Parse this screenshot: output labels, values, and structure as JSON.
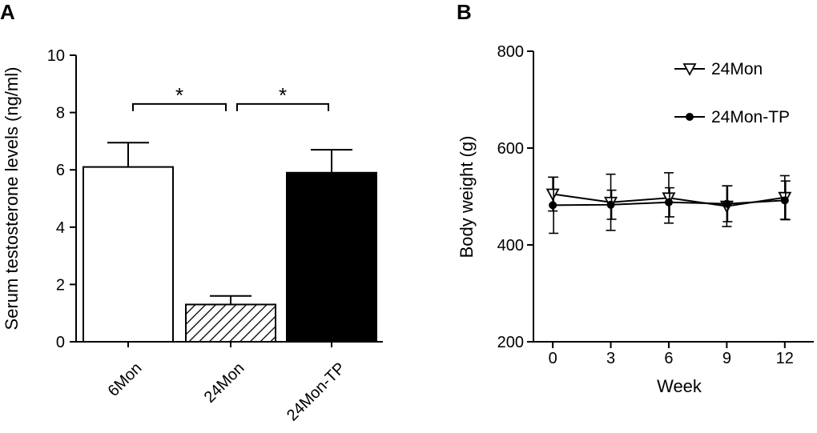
{
  "chart_data": [
    {
      "panel_label": "A",
      "type": "bar",
      "title": "",
      "xlabel": "",
      "ylabel": "Serum testosterone levels (ng/ml)",
      "ylim": [
        0,
        10
      ],
      "yticks": [
        "0",
        "2",
        "4",
        "6",
        "8",
        "10"
      ],
      "categories": [
        "6Mon",
        "24Mon",
        "24Mon-TP"
      ],
      "values": [
        6.1,
        1.3,
        5.9
      ],
      "errors": [
        0.85,
        0.3,
        0.8
      ],
      "fills": [
        "white",
        "hatched",
        "black"
      ],
      "significance": [
        {
          "from": 0,
          "to": 1,
          "y": 8.3,
          "label": "*"
        },
        {
          "from": 1,
          "to": 2,
          "y": 8.3,
          "label": "*"
        }
      ]
    },
    {
      "panel_label": "B",
      "type": "line",
      "title": "",
      "xlabel": "Week",
      "ylabel": "Body weight (g)",
      "ylim": [
        200,
        800
      ],
      "xlim": [
        -1,
        13.5
      ],
      "yticks": [
        "200",
        "400",
        "600",
        "800"
      ],
      "x": [
        0,
        3,
        6,
        9,
        12
      ],
      "xticks": [
        "0",
        "3",
        "6",
        "9",
        "12"
      ],
      "legend_position": "top-right",
      "series": [
        {
          "name": "24Mon",
          "marker": "triangle-down-open",
          "values": [
            505,
            488,
            497,
            480,
            498
          ],
          "errors": [
            35,
            58,
            52,
            42,
            45
          ]
        },
        {
          "name": "24Mon-TP",
          "marker": "circle-filled",
          "values": [
            482,
            483,
            488,
            485,
            492
          ],
          "errors": [
            58,
            30,
            30,
            37,
            40
          ]
        }
      ]
    }
  ]
}
